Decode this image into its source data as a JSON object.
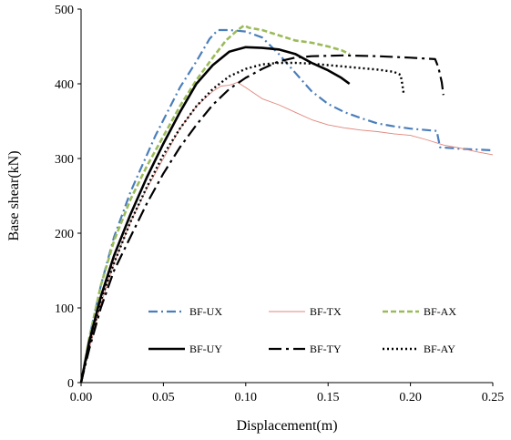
{
  "chart_data": {
    "type": "line",
    "title": "",
    "xlabel": "Displacement(m)",
    "ylabel": "Base shear(kN)",
    "xlim": [
      0,
      0.25
    ],
    "ylim": [
      0,
      500
    ],
    "xticks": [
      "0.00",
      "0.05",
      "0.10",
      "0.15",
      "0.20",
      "0.25"
    ],
    "yticks": [
      "0",
      "100",
      "200",
      "300",
      "400",
      "500"
    ],
    "grid": false,
    "legend_position": "bottom-inside",
    "series": [
      {
        "name": "BF-UX",
        "color": "#4a7ebb",
        "style": "dash-dot",
        "points": [
          [
            0,
            0
          ],
          [
            0.005,
            60
          ],
          [
            0.012,
            130
          ],
          [
            0.02,
            195
          ],
          [
            0.03,
            255
          ],
          [
            0.045,
            330
          ],
          [
            0.06,
            395
          ],
          [
            0.07,
            430
          ],
          [
            0.078,
            460
          ],
          [
            0.083,
            472
          ],
          [
            0.09,
            472
          ],
          [
            0.1,
            470
          ],
          [
            0.11,
            462
          ],
          [
            0.12,
            440
          ],
          [
            0.13,
            415
          ],
          [
            0.14,
            390
          ],
          [
            0.15,
            373
          ],
          [
            0.16,
            362
          ],
          [
            0.17,
            354
          ],
          [
            0.18,
            347
          ],
          [
            0.19,
            343
          ],
          [
            0.2,
            340
          ],
          [
            0.21,
            338
          ],
          [
            0.216,
            337
          ],
          [
            0.218,
            315
          ],
          [
            0.23,
            313
          ],
          [
            0.25,
            311
          ]
        ]
      },
      {
        "name": "BF-TX",
        "color": "#e0867c",
        "style": "solid-thin",
        "points": [
          [
            0,
            0
          ],
          [
            0.005,
            45
          ],
          [
            0.012,
            105
          ],
          [
            0.02,
            160
          ],
          [
            0.03,
            215
          ],
          [
            0.04,
            260
          ],
          [
            0.05,
            300
          ],
          [
            0.06,
            340
          ],
          [
            0.07,
            370
          ],
          [
            0.08,
            390
          ],
          [
            0.085,
            397
          ],
          [
            0.09,
            398
          ],
          [
            0.095,
            402
          ],
          [
            0.1,
            395
          ],
          [
            0.11,
            380
          ],
          [
            0.12,
            372
          ],
          [
            0.13,
            362
          ],
          [
            0.14,
            352
          ],
          [
            0.15,
            345
          ],
          [
            0.16,
            341
          ],
          [
            0.17,
            338
          ],
          [
            0.18,
            336
          ],
          [
            0.19,
            333
          ],
          [
            0.2,
            331
          ],
          [
            0.21,
            325
          ],
          [
            0.22,
            318
          ],
          [
            0.23,
            314
          ],
          [
            0.24,
            309
          ],
          [
            0.25,
            305
          ]
        ]
      },
      {
        "name": "BF-AX",
        "color": "#9bbb59",
        "style": "dashed",
        "points": [
          [
            0,
            0
          ],
          [
            0.005,
            60
          ],
          [
            0.012,
            130
          ],
          [
            0.02,
            190
          ],
          [
            0.03,
            245
          ],
          [
            0.04,
            290
          ],
          [
            0.05,
            330
          ],
          [
            0.06,
            370
          ],
          [
            0.07,
            405
          ],
          [
            0.08,
            435
          ],
          [
            0.088,
            458
          ],
          [
            0.095,
            472
          ],
          [
            0.099,
            478
          ],
          [
            0.102,
            475
          ],
          [
            0.11,
            472
          ],
          [
            0.12,
            465
          ],
          [
            0.13,
            458
          ],
          [
            0.14,
            455
          ],
          [
            0.15,
            450
          ],
          [
            0.158,
            445
          ],
          [
            0.163,
            440
          ]
        ]
      },
      {
        "name": "BF-UY",
        "color": "#000000",
        "style": "solid-thick",
        "points": [
          [
            0,
            0
          ],
          [
            0.005,
            55
          ],
          [
            0.012,
            115
          ],
          [
            0.02,
            170
          ],
          [
            0.03,
            225
          ],
          [
            0.04,
            275
          ],
          [
            0.05,
            320
          ],
          [
            0.06,
            362
          ],
          [
            0.07,
            400
          ],
          [
            0.08,
            425
          ],
          [
            0.09,
            443
          ],
          [
            0.1,
            449
          ],
          [
            0.11,
            448
          ],
          [
            0.12,
            446
          ],
          [
            0.13,
            440
          ],
          [
            0.14,
            428
          ],
          [
            0.15,
            418
          ],
          [
            0.158,
            408
          ],
          [
            0.163,
            400
          ]
        ]
      },
      {
        "name": "BF-TY",
        "color": "#000000",
        "style": "long-dash-dot",
        "points": [
          [
            0,
            0
          ],
          [
            0.005,
            45
          ],
          [
            0.012,
            100
          ],
          [
            0.02,
            150
          ],
          [
            0.03,
            195
          ],
          [
            0.04,
            240
          ],
          [
            0.05,
            280
          ],
          [
            0.06,
            315
          ],
          [
            0.07,
            345
          ],
          [
            0.08,
            372
          ],
          [
            0.09,
            393
          ],
          [
            0.1,
            408
          ],
          [
            0.11,
            420
          ],
          [
            0.12,
            430
          ],
          [
            0.13,
            435
          ],
          [
            0.14,
            437
          ],
          [
            0.16,
            438
          ],
          [
            0.18,
            437
          ],
          [
            0.2,
            435
          ],
          [
            0.215,
            433
          ],
          [
            0.217,
            422
          ],
          [
            0.219,
            402
          ],
          [
            0.22,
            385
          ]
        ]
      },
      {
        "name": "BF-AY",
        "color": "#000000",
        "style": "dotted",
        "points": [
          [
            0,
            0
          ],
          [
            0.005,
            50
          ],
          [
            0.012,
            110
          ],
          [
            0.02,
            160
          ],
          [
            0.03,
            215
          ],
          [
            0.04,
            262
          ],
          [
            0.05,
            305
          ],
          [
            0.06,
            340
          ],
          [
            0.07,
            370
          ],
          [
            0.08,
            393
          ],
          [
            0.09,
            410
          ],
          [
            0.1,
            420
          ],
          [
            0.11,
            426
          ],
          [
            0.12,
            428
          ],
          [
            0.13,
            428
          ],
          [
            0.14,
            427
          ],
          [
            0.15,
            425
          ],
          [
            0.16,
            423
          ],
          [
            0.17,
            421
          ],
          [
            0.18,
            419
          ],
          [
            0.19,
            416
          ],
          [
            0.194,
            412
          ],
          [
            0.195,
            400
          ],
          [
            0.196,
            385
          ]
        ]
      }
    ]
  }
}
